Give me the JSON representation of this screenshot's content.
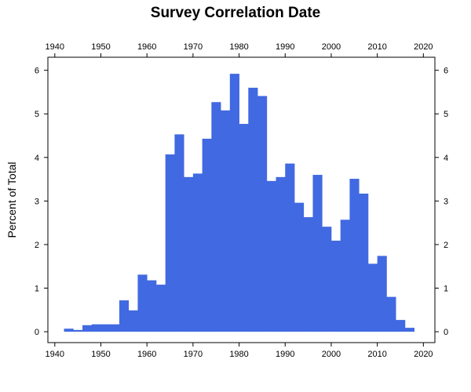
{
  "chart_data": {
    "type": "bar",
    "title": "Survey Correlation Date",
    "xlabel": "",
    "ylabel": "Percent of Total",
    "xlim": [
      1938.5,
      2022.5
    ],
    "ylim": [
      -0.25,
      6.3
    ],
    "x_ticks": [
      1940,
      1950,
      1960,
      1970,
      1980,
      1990,
      2000,
      2010,
      2020
    ],
    "y_ticks": [
      0,
      1,
      2,
      3,
      4,
      5,
      6
    ],
    "bar_color": "#4169E1",
    "grid": false,
    "bin_width": 2,
    "bin_start": [
      1942,
      1944,
      1946,
      1948,
      1950,
      1952,
      1954,
      1956,
      1958,
      1960,
      1962,
      1964,
      1966,
      1968,
      1970,
      1972,
      1974,
      1976,
      1978,
      1980,
      1982,
      1984,
      1986,
      1988,
      1990,
      1992,
      1994,
      1996,
      1998,
      2000,
      2002,
      2004,
      2006,
      2008,
      2010,
      2012,
      2014,
      2016
    ],
    "values": [
      0.07,
      0.04,
      0.15,
      0.17,
      0.17,
      0.17,
      0.72,
      0.49,
      1.31,
      1.18,
      1.08,
      4.07,
      4.53,
      3.55,
      3.63,
      4.43,
      5.27,
      5.08,
      5.92,
      4.77,
      5.6,
      5.41,
      3.46,
      3.55,
      3.86,
      2.96,
      2.63,
      3.6,
      2.41,
      2.09,
      2.57,
      3.51,
      3.17,
      1.56,
      1.74,
      0.8,
      0.27,
      0.09
    ]
  }
}
